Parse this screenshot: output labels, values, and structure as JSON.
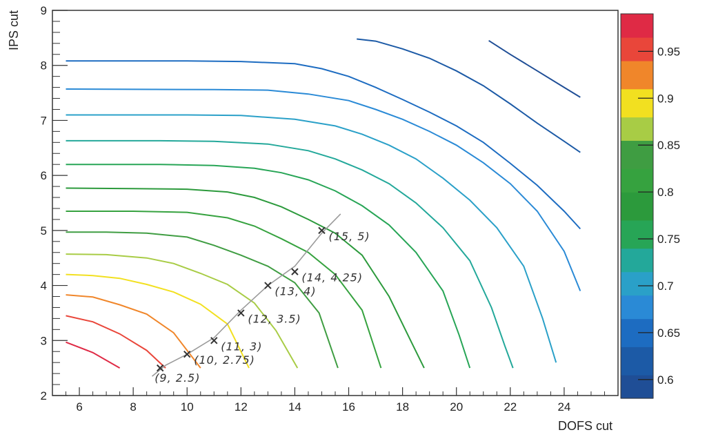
{
  "chart_data": {
    "type": "contour",
    "xlabel": "DOFS cut",
    "ylabel": "IPS cut",
    "xlim": [
      5,
      26
    ],
    "ylim": [
      2,
      9
    ],
    "xticks": [
      "6",
      "8",
      "10",
      "12",
      "14",
      "16",
      "18",
      "20",
      "22",
      "24"
    ],
    "yticks": [
      "2",
      "3",
      "4",
      "5",
      "6",
      "7",
      "8",
      "9"
    ],
    "grid": false,
    "colorbar": {
      "range": [
        0.58,
        0.99
      ],
      "tick_labels": [
        "0.6",
        "0.65",
        "0.7",
        "0.75",
        "0.8",
        "0.85",
        "0.9",
        "0.95"
      ],
      "tick_values": [
        0.6,
        0.65,
        0.7,
        0.75,
        0.8,
        0.85,
        0.9,
        0.95
      ],
      "bands": [
        {
          "from": 0.58,
          "to": 0.605,
          "color": "#1f4e96"
        },
        {
          "from": 0.605,
          "to": 0.635,
          "color": "#1c5aa6"
        },
        {
          "from": 0.635,
          "to": 0.665,
          "color": "#1d6cc1"
        },
        {
          "from": 0.665,
          "to": 0.69,
          "color": "#2a8ad6"
        },
        {
          "from": 0.69,
          "to": 0.715,
          "color": "#2aa0c8"
        },
        {
          "from": 0.715,
          "to": 0.74,
          "color": "#23a89a"
        },
        {
          "from": 0.74,
          "to": 0.77,
          "color": "#27a556"
        },
        {
          "from": 0.77,
          "to": 0.8,
          "color": "#2c9a3c"
        },
        {
          "from": 0.8,
          "to": 0.825,
          "color": "#36a23f"
        },
        {
          "from": 0.825,
          "to": 0.855,
          "color": "#3f9d42"
        },
        {
          "from": 0.855,
          "to": 0.88,
          "color": "#a8cc45"
        },
        {
          "from": 0.88,
          "to": 0.91,
          "color": "#f2e020"
        },
        {
          "from": 0.91,
          "to": 0.94,
          "color": "#f0862a"
        },
        {
          "from": 0.94,
          "to": 0.965,
          "color": "#e9463a"
        },
        {
          "from": 0.965,
          "to": 0.99,
          "color": "#df2a45"
        }
      ]
    },
    "contours": [
      {
        "color": "#df2a45",
        "points": [
          [
            5.5,
            2.97
          ],
          [
            6.5,
            2.78
          ],
          [
            7.5,
            2.5
          ]
        ]
      },
      {
        "color": "#e9463a",
        "points": [
          [
            5.5,
            3.45
          ],
          [
            6.5,
            3.34
          ],
          [
            7.5,
            3.12
          ],
          [
            8.5,
            2.82
          ],
          [
            9.2,
            2.5
          ]
        ]
      },
      {
        "color": "#f0862a",
        "points": [
          [
            5.5,
            3.83
          ],
          [
            6.5,
            3.79
          ],
          [
            7.5,
            3.65
          ],
          [
            8.5,
            3.48
          ],
          [
            9.5,
            3.14
          ],
          [
            10.5,
            2.5
          ]
        ]
      },
      {
        "color": "#f2e020",
        "points": [
          [
            5.5,
            4.2
          ],
          [
            6.5,
            4.18
          ],
          [
            7.5,
            4.13
          ],
          [
            8.5,
            4.02
          ],
          [
            9.5,
            3.88
          ],
          [
            10.5,
            3.66
          ],
          [
            11.5,
            3.3
          ],
          [
            12.3,
            2.5
          ]
        ]
      },
      {
        "color": "#a8cc45",
        "points": [
          [
            5.5,
            4.57
          ],
          [
            7,
            4.56
          ],
          [
            8.5,
            4.5
          ],
          [
            9.5,
            4.4
          ],
          [
            10.5,
            4.22
          ],
          [
            11.5,
            4.02
          ],
          [
            12.5,
            3.68
          ],
          [
            13.3,
            3.18
          ],
          [
            14.1,
            2.5
          ]
        ]
      },
      {
        "color": "#3f9d42",
        "points": [
          [
            5.5,
            4.97
          ],
          [
            7,
            4.97
          ],
          [
            8.5,
            4.95
          ],
          [
            10,
            4.88
          ],
          [
            11,
            4.73
          ],
          [
            12,
            4.55
          ],
          [
            13,
            4.35
          ],
          [
            14,
            4.05
          ],
          [
            14.9,
            3.5
          ],
          [
            15.6,
            2.5
          ]
        ]
      },
      {
        "color": "#36a23f",
        "points": [
          [
            5.5,
            5.35
          ],
          [
            8,
            5.35
          ],
          [
            10,
            5.33
          ],
          [
            11.5,
            5.23
          ],
          [
            12.5,
            5.08
          ],
          [
            13.5,
            4.85
          ],
          [
            14.5,
            4.6
          ],
          [
            15.5,
            4.2
          ],
          [
            16.5,
            3.55
          ],
          [
            17.2,
            2.5
          ]
        ]
      },
      {
        "color": "#2c9a3c",
        "points": [
          [
            5.5,
            5.77
          ],
          [
            8,
            5.76
          ],
          [
            10,
            5.75
          ],
          [
            11.5,
            5.7
          ],
          [
            12.5,
            5.6
          ],
          [
            13.5,
            5.43
          ],
          [
            14.5,
            5.2
          ],
          [
            15.5,
            4.95
          ],
          [
            16.5,
            4.55
          ],
          [
            17.5,
            3.8
          ],
          [
            18.3,
            3
          ],
          [
            18.8,
            2.5
          ]
        ]
      },
      {
        "color": "#27a556",
        "points": [
          [
            5.5,
            6.2
          ],
          [
            9,
            6.2
          ],
          [
            11,
            6.18
          ],
          [
            12.5,
            6.13
          ],
          [
            13.5,
            6.05
          ],
          [
            14.5,
            5.92
          ],
          [
            15.5,
            5.72
          ],
          [
            16.5,
            5.45
          ],
          [
            17.5,
            5.1
          ],
          [
            18.5,
            4.6
          ],
          [
            19.5,
            3.9
          ],
          [
            20.1,
            3.1
          ],
          [
            20.5,
            2.5
          ]
        ]
      },
      {
        "color": "#23a89a",
        "points": [
          [
            5.5,
            6.63
          ],
          [
            9,
            6.63
          ],
          [
            11,
            6.62
          ],
          [
            13,
            6.57
          ],
          [
            14.5,
            6.45
          ],
          [
            15.5,
            6.3
          ],
          [
            16.5,
            6.1
          ],
          [
            17.5,
            5.85
          ],
          [
            18.5,
            5.5
          ],
          [
            19.5,
            5.05
          ],
          [
            20.5,
            4.45
          ],
          [
            21.3,
            3.6
          ],
          [
            21.8,
            2.9
          ],
          [
            22.1,
            2.5
          ]
        ]
      },
      {
        "color": "#2aa0c8",
        "points": [
          [
            5.5,
            7.1
          ],
          [
            10,
            7.1
          ],
          [
            12,
            7.09
          ],
          [
            14,
            7.02
          ],
          [
            15.5,
            6.9
          ],
          [
            16.5,
            6.75
          ],
          [
            17.5,
            6.55
          ],
          [
            18.5,
            6.3
          ],
          [
            19.5,
            5.95
          ],
          [
            20.5,
            5.55
          ],
          [
            21.5,
            5.05
          ],
          [
            22.5,
            4.35
          ],
          [
            23.2,
            3.4
          ],
          [
            23.7,
            2.6
          ]
        ]
      },
      {
        "color": "#2a8ad6",
        "points": [
          [
            5.5,
            7.57
          ],
          [
            11,
            7.56
          ],
          [
            13,
            7.55
          ],
          [
            14.5,
            7.48
          ],
          [
            16,
            7.36
          ],
          [
            17,
            7.2
          ],
          [
            18,
            7.02
          ],
          [
            19,
            6.8
          ],
          [
            20,
            6.55
          ],
          [
            21,
            6.23
          ],
          [
            22,
            5.85
          ],
          [
            23,
            5.35
          ],
          [
            24,
            4.62
          ],
          [
            24.6,
            3.9
          ]
        ]
      },
      {
        "color": "#1d6cc1",
        "points": [
          [
            5.5,
            8.08
          ],
          [
            10,
            8.08
          ],
          [
            12,
            8.07
          ],
          [
            14,
            8.03
          ],
          [
            15,
            7.94
          ],
          [
            16,
            7.8
          ],
          [
            17,
            7.6
          ],
          [
            18,
            7.38
          ],
          [
            19,
            7.15
          ],
          [
            20,
            6.9
          ],
          [
            21,
            6.6
          ],
          [
            22,
            6.22
          ],
          [
            23,
            5.82
          ],
          [
            24,
            5.35
          ],
          [
            24.6,
            5.03
          ]
        ]
      },
      {
        "color": "#1c5aa6",
        "points": [
          [
            16.3,
            8.48
          ],
          [
            17,
            8.44
          ],
          [
            18,
            8.3
          ],
          [
            19,
            8.13
          ],
          [
            20,
            7.9
          ],
          [
            21,
            7.63
          ],
          [
            22,
            7.3
          ],
          [
            23,
            6.95
          ],
          [
            24,
            6.62
          ],
          [
            24.6,
            6.42
          ]
        ]
      },
      {
        "color": "#1f4e96",
        "points": [
          [
            21.2,
            8.45
          ],
          [
            22,
            8.2
          ],
          [
            23,
            7.9
          ],
          [
            24,
            7.6
          ],
          [
            24.6,
            7.42
          ]
        ]
      }
    ],
    "annotation_curve": [
      [
        8.7,
        2.35
      ],
      [
        9.2,
        2.55
      ],
      [
        10,
        2.75
      ],
      [
        11,
        3.05
      ],
      [
        12,
        3.55
      ],
      [
        13,
        4.0
      ],
      [
        14,
        4.35
      ],
      [
        15,
        4.95
      ],
      [
        15.7,
        5.3
      ]
    ],
    "annotations": [
      {
        "x": 9,
        "y": 2.5,
        "label": "(9, 2.5)"
      },
      {
        "x": 10,
        "y": 2.75,
        "label": "(10, 2.75)"
      },
      {
        "x": 11,
        "y": 3,
        "label": "(11, 3)"
      },
      {
        "x": 12,
        "y": 3.5,
        "label": "(12, 3.5)"
      },
      {
        "x": 13,
        "y": 4,
        "label": "(13, 4)"
      },
      {
        "x": 14,
        "y": 4.25,
        "label": "(14, 4.25)"
      },
      {
        "x": 15,
        "y": 5,
        "label": "(15, 5)"
      }
    ]
  }
}
